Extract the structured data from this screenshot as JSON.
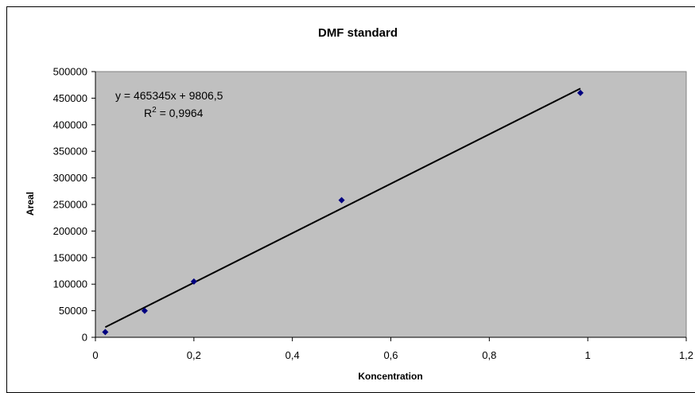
{
  "chart_data": {
    "type": "scatter",
    "title": "DMF standard",
    "xlabel": "Koncentration",
    "ylabel": "Areal",
    "xlim": [
      0,
      1.2
    ],
    "ylim": [
      0,
      500000
    ],
    "x_ticks": [
      "0",
      "0,2",
      "0,4",
      "0,6",
      "0,8",
      "1",
      "1,2"
    ],
    "y_ticks": [
      "0",
      "50000",
      "100000",
      "150000",
      "200000",
      "250000",
      "300000",
      "350000",
      "400000",
      "450000",
      "500000"
    ],
    "series": [
      {
        "points": [
          {
            "x": 0.02,
            "y": 10000
          },
          {
            "x": 0.1,
            "y": 50000
          },
          {
            "x": 0.2,
            "y": 105000
          },
          {
            "x": 0.5,
            "y": 258000
          },
          {
            "x": 0.985,
            "y": 460000
          }
        ],
        "color": "#000080"
      }
    ],
    "trendline": {
      "slope": 465345,
      "intercept": 9806.5,
      "x_range": [
        0.02,
        0.985
      ],
      "equation": "y = 465345x + 9806,5",
      "r2_label": "R",
      "r2_exp": "2",
      "r2_value": " = 0,9964",
      "color": "#000000"
    },
    "plot_background": "#c0c0c0",
    "grid": false,
    "legend": "none"
  }
}
